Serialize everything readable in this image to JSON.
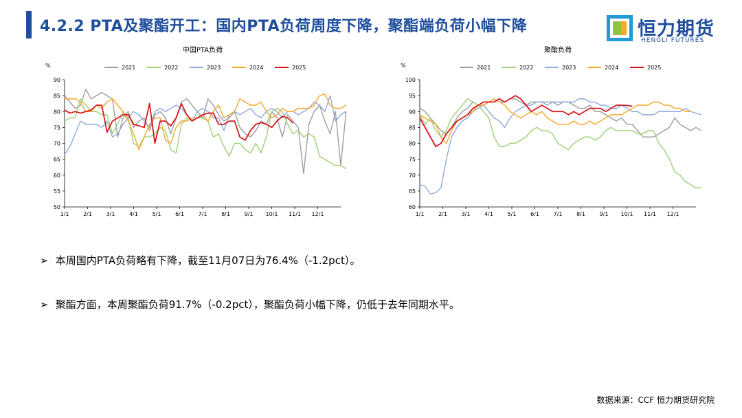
{
  "header": {
    "title": "4.2.2  PTA及聚酯开工：国内PTA负荷周度下降，聚酯端负荷小幅下降"
  },
  "logo": {
    "name": "恒力期货",
    "subtitle": "HENGLI FUTURES"
  },
  "colors": {
    "2021": "#9e9e9e",
    "2022": "#9ed176",
    "2023": "#8faadc",
    "2024": "#f7a828",
    "2025": "#d7191c",
    "accent": "#1f4e9c"
  },
  "chart_data": [
    {
      "type": "line",
      "title": "中国PTA负荷",
      "ylabel": "%",
      "ylim": [
        50,
        90
      ],
      "yticks": [
        "50",
        "55",
        "60",
        "65",
        "70",
        "75",
        "80",
        "85",
        "90"
      ],
      "xticks": [
        "1/1",
        "2/1",
        "3/1",
        "4/1",
        "5/1",
        "6/1",
        "7/1",
        "8/1",
        "9/1",
        "10/1",
        "11/1",
        "12/1"
      ],
      "x_unit": "week",
      "series": [
        {
          "name": "2021",
          "values": [
            85,
            83,
            81,
            82,
            87,
            84,
            85,
            86,
            85,
            84,
            72,
            78,
            80,
            75,
            77,
            78,
            74,
            79,
            80,
            78,
            73,
            78,
            83,
            84,
            82,
            80,
            78,
            84,
            82,
            79,
            77,
            78,
            80,
            75,
            73,
            72,
            74,
            77,
            76,
            80,
            78,
            72,
            79,
            77,
            75,
            60.5,
            76,
            80,
            82,
            77,
            73,
            80,
            63,
            80
          ]
        },
        {
          "name": "2022",
          "values": [
            77,
            78,
            78,
            84,
            82,
            80,
            80,
            79,
            79,
            73,
            76,
            80,
            78,
            70,
            69,
            72,
            72,
            73,
            75,
            74,
            68,
            67,
            76,
            78,
            77,
            78,
            78,
            77,
            72,
            73,
            69,
            66,
            70,
            70,
            68,
            67,
            70,
            67,
            72,
            80,
            81,
            80,
            76,
            73,
            74,
            72,
            73,
            72,
            66,
            65,
            64,
            63,
            63,
            62
          ]
        },
        {
          "name": "2023",
          "values": [
            66.5,
            69,
            73,
            77,
            76,
            76,
            76,
            75,
            77,
            72,
            73,
            76,
            78,
            80,
            79,
            77,
            75,
            80,
            81,
            80,
            81,
            82,
            81,
            79,
            77,
            80,
            81,
            80,
            78,
            78,
            74,
            79,
            80,
            79,
            80,
            81,
            79,
            78,
            80,
            81,
            80,
            78,
            80,
            80,
            79,
            80,
            81,
            83,
            82,
            80,
            85,
            77,
            79,
            80
          ]
        },
        {
          "name": "2024",
          "values": [
            84,
            84,
            84,
            83,
            80,
            80,
            82,
            81,
            83,
            84,
            82,
            80,
            77,
            73,
            68,
            72,
            76,
            78,
            78,
            71,
            70,
            75,
            77,
            77,
            78,
            78,
            79,
            77,
            80,
            82,
            78,
            79,
            80,
            84,
            83,
            82,
            82,
            83,
            80,
            78,
            79,
            81,
            80,
            80,
            81,
            81,
            81,
            82,
            85,
            85.5,
            82,
            81,
            81,
            82
          ]
        },
        {
          "name": "2025",
          "values": [
            80.5,
            79.5,
            80,
            79.5,
            80,
            80.5,
            82,
            82,
            73.5,
            77,
            78,
            79,
            79,
            76,
            75.5,
            75,
            82.5,
            70,
            77,
            77,
            75.5,
            78,
            82.5,
            79,
            77,
            78,
            79,
            79.5,
            79.5,
            76,
            76,
            77,
            77,
            72,
            71,
            74,
            76,
            76.5,
            76,
            75,
            77,
            78.5,
            78,
            76.4
          ]
        }
      ]
    },
    {
      "type": "line",
      "title": "聚酯负荷",
      "ylabel": "%",
      "ylim": [
        60,
        100
      ],
      "yticks": [
        "60",
        "65",
        "70",
        "75",
        "80",
        "85",
        "90",
        "95",
        "100"
      ],
      "xticks": [
        "1/1",
        "2/1",
        "3/1",
        "4/1",
        "5/1",
        "6/1",
        "7/1",
        "8/1",
        "9/1",
        "10/1",
        "11/1",
        "12/1"
      ],
      "x_unit": "week",
      "series": [
        {
          "name": "2021",
          "values": [
            91,
            90,
            88,
            86,
            84,
            83,
            85,
            88,
            90,
            91,
            93,
            92,
            92,
            93,
            94,
            93,
            93,
            94,
            94,
            93,
            92,
            93,
            93,
            93,
            93,
            93,
            92,
            93,
            93,
            92,
            91,
            91,
            92,
            90,
            90,
            89,
            88,
            87,
            88,
            86,
            86,
            84,
            82,
            82,
            82,
            83,
            84,
            85,
            88,
            86,
            85,
            84,
            85,
            84
          ]
        },
        {
          "name": "2022",
          "values": [
            89,
            86,
            88,
            84,
            82,
            84,
            88,
            90,
            92,
            94,
            93,
            92,
            90,
            88,
            82,
            79,
            79,
            80,
            80,
            81,
            82,
            84,
            85,
            84,
            84,
            83,
            80,
            79,
            78,
            80,
            81,
            82,
            82,
            81,
            82,
            84,
            85,
            84,
            84,
            84,
            84,
            83,
            83,
            84,
            84,
            80,
            78,
            75,
            71,
            70,
            68,
            67,
            66,
            66
          ]
        },
        {
          "name": "2023",
          "values": [
            67,
            66.5,
            64,
            64.5,
            66,
            75,
            82,
            85,
            87,
            88,
            90,
            91,
            92,
            90,
            88,
            87,
            85,
            88,
            90,
            91,
            92,
            92,
            93,
            93,
            92,
            93,
            93,
            93,
            93,
            93,
            94,
            94,
            93,
            93,
            92,
            92,
            91,
            91,
            92,
            91,
            90,
            90,
            89,
            89,
            89,
            90,
            90,
            90,
            90,
            90,
            91,
            90,
            89.5,
            89
          ]
        },
        {
          "name": "2024",
          "values": [
            89,
            88,
            87,
            86,
            82,
            80,
            84,
            87,
            88,
            89,
            90,
            92,
            92,
            93,
            94,
            93,
            92,
            90,
            89,
            88,
            89,
            90,
            89,
            90,
            88,
            87,
            86,
            86,
            86,
            87,
            86,
            86,
            87,
            86,
            87,
            88,
            89,
            89,
            89,
            90,
            91,
            92,
            92,
            92,
            93,
            93,
            92,
            92,
            91,
            91,
            90,
            90
          ]
        },
        {
          "name": "2025",
          "values": [
            88,
            85,
            82,
            79,
            80,
            83,
            85,
            87,
            88,
            89,
            91,
            92,
            93,
            93,
            93,
            94,
            93,
            94,
            95,
            94,
            92,
            90,
            91,
            92,
            91,
            90,
            90,
            90,
            89,
            90,
            89,
            90,
            91,
            91,
            91,
            90,
            91,
            92,
            92,
            91.9,
            91.7
          ]
        }
      ]
    }
  ],
  "bullets": [
    {
      "arrow": "➢",
      "text": "本周国内PTA负荷略有下降，截至11月07日为76.4%（-1.2pct）。"
    },
    {
      "arrow": "➢",
      "text": "聚酯方面，本周聚酯负荷91.7%（-0.2pct），聚酯负荷小幅下降，仍低于去年同期水平。"
    }
  ],
  "source": "数据来源：CCF 恒力期货研究院"
}
